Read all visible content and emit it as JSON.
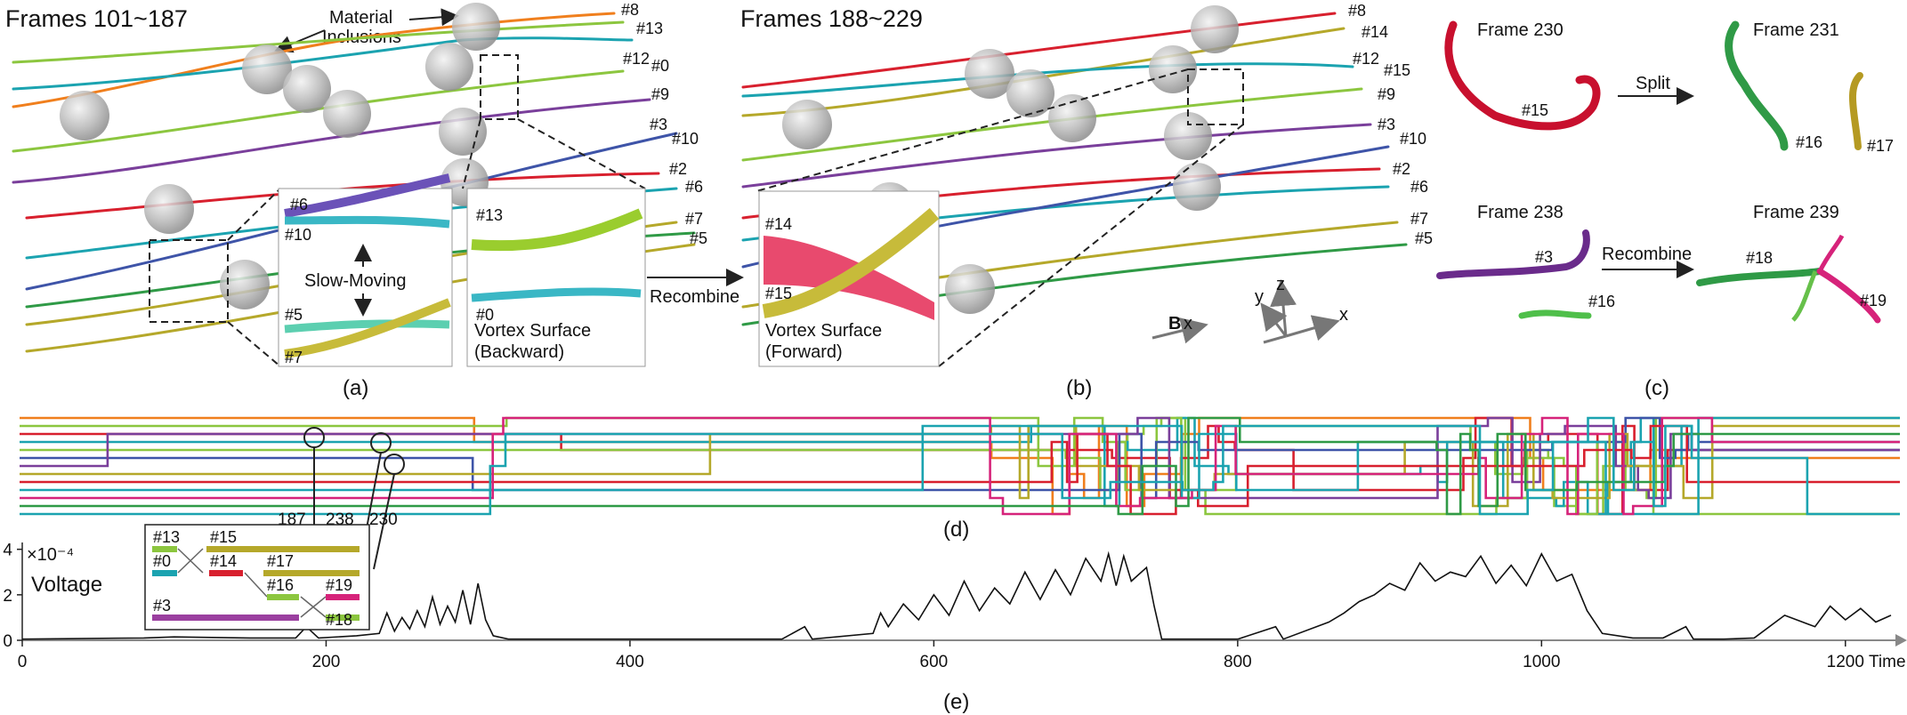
{
  "panel_a": {
    "title": "Frames 101~187",
    "annotation_line1": "Material",
    "annotation_line2": "Inclusions",
    "caption": "(a)",
    "slow_moving": "Slow-Moving",
    "inset1_labels": [
      "#6",
      "#10",
      "#5",
      "#7"
    ],
    "inset2_labels": [
      "#13",
      "#0"
    ],
    "inset2_caption_1": "Vortex Surface",
    "inset2_caption_2": "(Backward)",
    "line_labels": [
      "#8",
      "#13",
      "#12",
      "#0",
      "#9",
      "#3",
      "#10",
      "#2",
      "#6",
      "#7",
      "#5"
    ]
  },
  "panel_b": {
    "title": "Frames 188~229",
    "caption": "(b)",
    "recombine": "Recombine",
    "inset_labels": [
      "#14",
      "#15"
    ],
    "inset_caption_1": "Vortex Surface",
    "inset_caption_2": "(Forward)",
    "line_labels": [
      "#8",
      "#14",
      "#12",
      "#15",
      "#9",
      "#3",
      "#10",
      "#2",
      "#6",
      "#7",
      "#5"
    ],
    "axis_b": "B",
    "axis_b_sub": "x",
    "axis_x": "x",
    "axis_y": "y",
    "axis_z": "z"
  },
  "panel_c": {
    "caption": "(c)",
    "frame_230": "Frame 230",
    "frame_231": "Frame 231",
    "frame_238": "Frame 238",
    "frame_239": "Frame 239",
    "split": "Split",
    "recombine": "Recombine",
    "labels": [
      "#15",
      "#16",
      "#17",
      "#3",
      "#16",
      "#18",
      "#19"
    ]
  },
  "panel_d": {
    "caption": "(d)",
    "frame_marks": [
      "187",
      "238",
      "230"
    ],
    "legend": {
      "rows": [
        {
          "a": "#13",
          "b": "#15"
        },
        {
          "a": "#0",
          "b": "#14",
          "c": "#17"
        },
        {
          "a": "#16",
          "b": "#19"
        },
        {
          "a": "#3",
          "b": "#18"
        }
      ]
    }
  },
  "panel_e": {
    "caption": "(e)",
    "ylabel": "Voltage",
    "yexp": "×10⁻⁴",
    "xlabel": "Time",
    "xticks": [
      "0",
      "200",
      "400",
      "600",
      "800",
      "1000",
      "1200"
    ],
    "yticks": [
      "0",
      "2",
      "4"
    ]
  },
  "colors": {
    "red": "#d8202e",
    "orange": "#f07f1d",
    "yellow_olive": "#b5a82a",
    "green": "#8cc63f",
    "teal": "#1ba3b0",
    "blue": "#3e54a8",
    "purple": "#7a3f9b",
    "magenta": "#d6237a",
    "dark_green": "#2f9a46"
  },
  "chart_data": {
    "type": "line",
    "title": "",
    "xlabel": "Time",
    "ylabel": "Voltage",
    "xlim": [
      0,
      1230
    ],
    "ylim": [
      0,
      4.3
    ],
    "y_scale_factor": "×10⁻⁴",
    "series": [
      {
        "x": [
          0,
          80,
          100,
          150,
          180,
          187,
          195,
          220,
          235,
          240,
          245,
          250,
          255,
          260,
          265,
          270,
          275,
          280,
          285,
          290,
          295,
          300,
          305,
          310,
          320,
          400,
          500,
          515,
          520,
          560,
          565,
          570,
          580,
          590,
          600,
          610,
          620,
          630,
          640,
          650,
          660,
          670,
          680,
          690,
          700,
          710,
          715,
          720,
          725,
          730,
          740,
          745,
          750,
          800,
          825,
          830,
          860,
          870,
          880,
          890,
          900,
          910,
          920,
          930,
          940,
          950,
          960,
          970,
          980,
          990,
          1000,
          1010,
          1020,
          1030,
          1040,
          1060,
          1080,
          1095,
          1100,
          1120,
          1140,
          1160,
          1180,
          1190,
          1200,
          1210,
          1220,
          1230
        ],
        "y": [
          0.05,
          0.1,
          0.15,
          0.1,
          0.1,
          0.6,
          0.1,
          0.2,
          0.3,
          1.2,
          0.4,
          1.0,
          0.5,
          1.3,
          0.6,
          1.9,
          0.7,
          1.5,
          0.8,
          2.2,
          0.7,
          2.5,
          0.9,
          0.2,
          0.05,
          0.05,
          0.05,
          0.6,
          0.05,
          0.3,
          1.2,
          0.6,
          1.6,
          0.9,
          2.0,
          1.1,
          2.6,
          1.3,
          2.3,
          1.6,
          3.0,
          1.8,
          3.1,
          2.0,
          3.6,
          2.6,
          3.8,
          2.4,
          3.7,
          2.6,
          3.2,
          1.5,
          0.05,
          0.05,
          0.6,
          0.05,
          0.8,
          1.2,
          1.7,
          2.0,
          2.5,
          2.2,
          3.4,
          2.6,
          3.0,
          2.8,
          3.7,
          2.5,
          3.3,
          2.4,
          3.8,
          2.6,
          2.9,
          1.3,
          0.3,
          0.1,
          0.1,
          0.6,
          0.05,
          0.05,
          0.1,
          1.1,
          0.6,
          1.5,
          0.9,
          1.4,
          0.8,
          1.1
        ]
      }
    ]
  }
}
